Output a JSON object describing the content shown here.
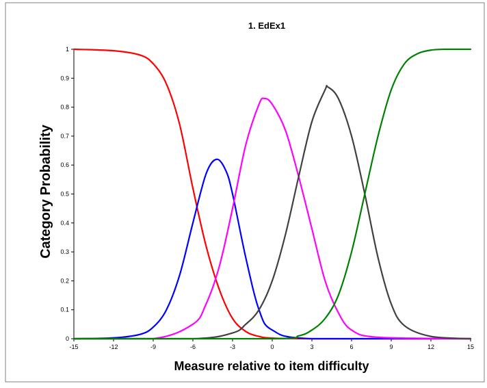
{
  "chart_data": {
    "type": "line",
    "title": "1. EdEx1",
    "xlabel": "Measure relative to item difficulty",
    "ylabel": "Category Probability",
    "xlim": [
      -15,
      15
    ],
    "ylim": [
      0,
      1
    ],
    "x_ticks": [
      "-15",
      "-12",
      "-9",
      "-6",
      "-3",
      "0",
      "3",
      "6",
      "9",
      "12",
      "15"
    ],
    "y_ticks": [
      "0",
      "0.1",
      "0.2",
      "0.3",
      "0.4",
      "0.5",
      "0.6",
      "0.7",
      "0.8",
      "0.9",
      "1"
    ],
    "grid": false,
    "legend": "none",
    "colors": [
      "#ff0000",
      "#0000ff",
      "#ff00ff",
      "#404040",
      "#008000"
    ],
    "series": [
      {
        "color": "#ff0000",
        "x": [
          -15,
          -12,
          -10,
          -9,
          -8,
          -7,
          -6,
          -5,
          -4,
          -3,
          -2,
          -1,
          0,
          3,
          15
        ],
        "y": [
          1.0,
          0.995,
          0.98,
          0.95,
          0.88,
          0.74,
          0.52,
          0.32,
          0.17,
          0.07,
          0.025,
          0.008,
          0.002,
          0.0,
          0.0
        ]
      },
      {
        "color": "#0000ff",
        "x": [
          -15,
          -12,
          -10,
          -9,
          -8,
          -7,
          -6,
          -5,
          -4.2,
          -3.5,
          -3,
          -2,
          -1,
          0,
          3,
          15
        ],
        "y": [
          0.0,
          0.003,
          0.015,
          0.04,
          0.1,
          0.22,
          0.4,
          0.57,
          0.62,
          0.58,
          0.5,
          0.28,
          0.1,
          0.03,
          0.0,
          0.0
        ]
      },
      {
        "color": "#ff00ff",
        "x": [
          -15,
          -9,
          -6,
          -5,
          -4,
          -3,
          -2,
          -1,
          -0.6,
          0,
          1,
          2,
          3,
          4,
          5,
          6,
          8,
          15
        ],
        "y": [
          0.0,
          0.0,
          0.05,
          0.12,
          0.25,
          0.45,
          0.67,
          0.81,
          0.83,
          0.81,
          0.72,
          0.56,
          0.38,
          0.2,
          0.09,
          0.03,
          0.005,
          0.0
        ]
      },
      {
        "color": "#404040",
        "x": [
          -15,
          -6,
          -3,
          -2,
          -1,
          0,
          1,
          2,
          3,
          4,
          4.2,
          5,
          6,
          7,
          8,
          9,
          10,
          12,
          15
        ],
        "y": [
          0.0,
          0.0,
          0.02,
          0.05,
          0.1,
          0.2,
          0.36,
          0.56,
          0.75,
          0.86,
          0.87,
          0.83,
          0.7,
          0.5,
          0.28,
          0.12,
          0.045,
          0.008,
          0.0
        ]
      },
      {
        "color": "#008000",
        "x": [
          -15,
          0,
          2,
          3,
          4,
          5,
          6,
          7,
          8,
          9,
          10,
          11,
          12,
          13,
          15
        ],
        "y": [
          0.0,
          0.0,
          0.01,
          0.03,
          0.07,
          0.15,
          0.3,
          0.5,
          0.7,
          0.86,
          0.95,
          0.985,
          0.997,
          1.0,
          1.0
        ]
      }
    ]
  }
}
